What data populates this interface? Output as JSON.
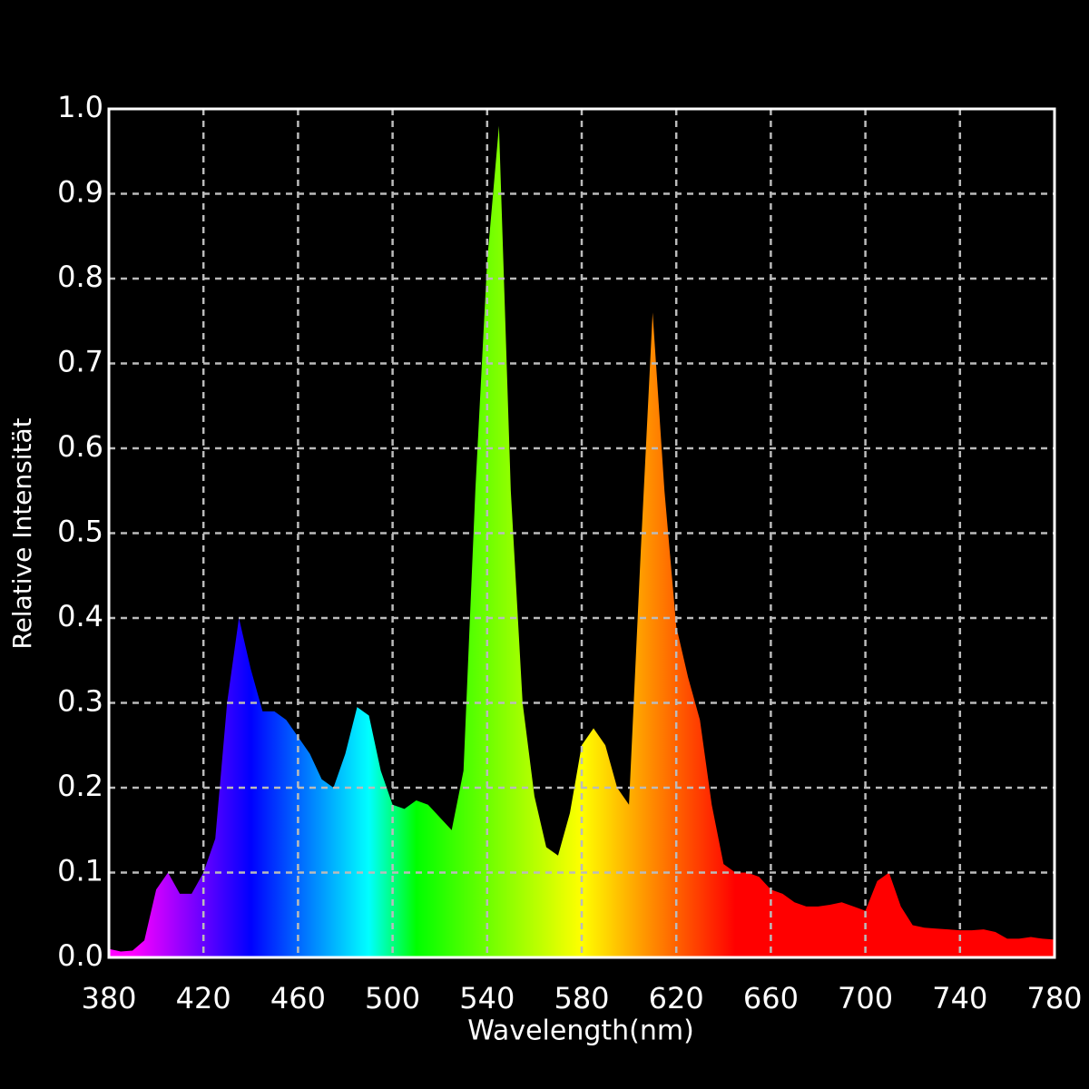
{
  "chart_data": {
    "type": "area",
    "x_label": "Wavelength(nm)",
    "y_label": "Relative Intensität",
    "x": [
      380,
      385,
      390,
      395,
      400,
      405,
      410,
      415,
      420,
      425,
      430,
      435,
      440,
      445,
      450,
      455,
      460,
      465,
      470,
      475,
      480,
      485,
      490,
      495,
      500,
      505,
      510,
      515,
      520,
      525,
      530,
      535,
      540,
      545,
      550,
      555,
      560,
      565,
      570,
      575,
      580,
      585,
      590,
      595,
      600,
      605,
      610,
      615,
      620,
      625,
      630,
      635,
      640,
      645,
      650,
      655,
      660,
      665,
      670,
      675,
      680,
      685,
      690,
      695,
      700,
      705,
      710,
      715,
      720,
      725,
      730,
      735,
      740,
      745,
      750,
      755,
      760,
      765,
      770,
      775,
      780
    ],
    "values": [
      0.01,
      0.007,
      0.008,
      0.02,
      0.08,
      0.1,
      0.075,
      0.075,
      0.1,
      0.14,
      0.3,
      0.4,
      0.34,
      0.29,
      0.29,
      0.28,
      0.26,
      0.24,
      0.21,
      0.2,
      0.24,
      0.295,
      0.285,
      0.22,
      0.18,
      0.175,
      0.185,
      0.18,
      0.165,
      0.15,
      0.22,
      0.55,
      0.82,
      0.98,
      0.55,
      0.3,
      0.19,
      0.13,
      0.12,
      0.17,
      0.25,
      0.27,
      0.25,
      0.2,
      0.18,
      0.48,
      0.76,
      0.55,
      0.39,
      0.33,
      0.28,
      0.18,
      0.11,
      0.1,
      0.1,
      0.095,
      0.08,
      0.075,
      0.065,
      0.06,
      0.06,
      0.062,
      0.065,
      0.06,
      0.055,
      0.09,
      0.1,
      0.06,
      0.038,
      0.035,
      0.034,
      0.033,
      0.032,
      0.032,
      0.033,
      0.03,
      0.022,
      0.022,
      0.024,
      0.022,
      0.021
    ],
    "xlim": [
      380,
      780
    ],
    "xticks": [
      380,
      420,
      460,
      500,
      540,
      580,
      620,
      660,
      700,
      740,
      780
    ],
    "ylim": [
      0,
      1
    ],
    "yticks": [
      {
        "value": 0,
        "label": "0.0"
      },
      0.1,
      0.2,
      0.3,
      0.4,
      0.5,
      0.6,
      0.7,
      0.8,
      0.9,
      {
        "value": 1,
        "label": "1.0"
      }
    ],
    "grid": true
  }
}
